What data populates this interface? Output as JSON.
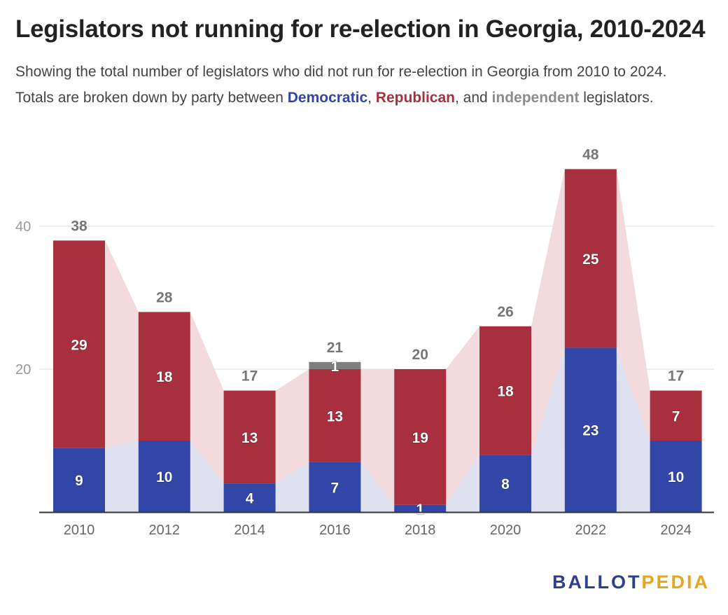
{
  "title": "Legislators not running for re-election in Georgia, 2010-2024",
  "subtitle": {
    "text_1": "Showing the total number of legislators who did not run for re-election in Georgia from 2010 to 2024. Totals are broken down by party between ",
    "democratic": "Democratic",
    "sep_1": ", ",
    "republican": "Republican",
    "sep_2": ", and ",
    "independent": "independent",
    "text_2": " legislators."
  },
  "logo": {
    "part_1": "BALLOT",
    "part_2": "PEDIA"
  },
  "colors": {
    "democratic": "#3246a8",
    "republican": "#a8303e",
    "independent": "#7f7f7f",
    "dem_area": "#dfe1f0",
    "rep_area": "#f2dadd",
    "gridline": "#dddddd",
    "axis_text": "#999999",
    "total_label": "#777777"
  },
  "chart_data": {
    "type": "bar",
    "stacked": true,
    "categories": [
      "2010",
      "2012",
      "2014",
      "2016",
      "2018",
      "2020",
      "2022",
      "2024"
    ],
    "series": [
      {
        "name": "Democratic",
        "values": [
          9,
          10,
          4,
          7,
          1,
          8,
          23,
          10
        ]
      },
      {
        "name": "Republican",
        "values": [
          29,
          18,
          13,
          13,
          19,
          18,
          25,
          7
        ]
      },
      {
        "name": "independent",
        "values": [
          0,
          0,
          0,
          1,
          0,
          0,
          0,
          0
        ]
      }
    ],
    "totals": [
      38,
      28,
      17,
      21,
      20,
      26,
      48,
      17
    ],
    "yticks": [
      20,
      40
    ],
    "ylim": [
      0,
      48
    ],
    "grid": true
  }
}
